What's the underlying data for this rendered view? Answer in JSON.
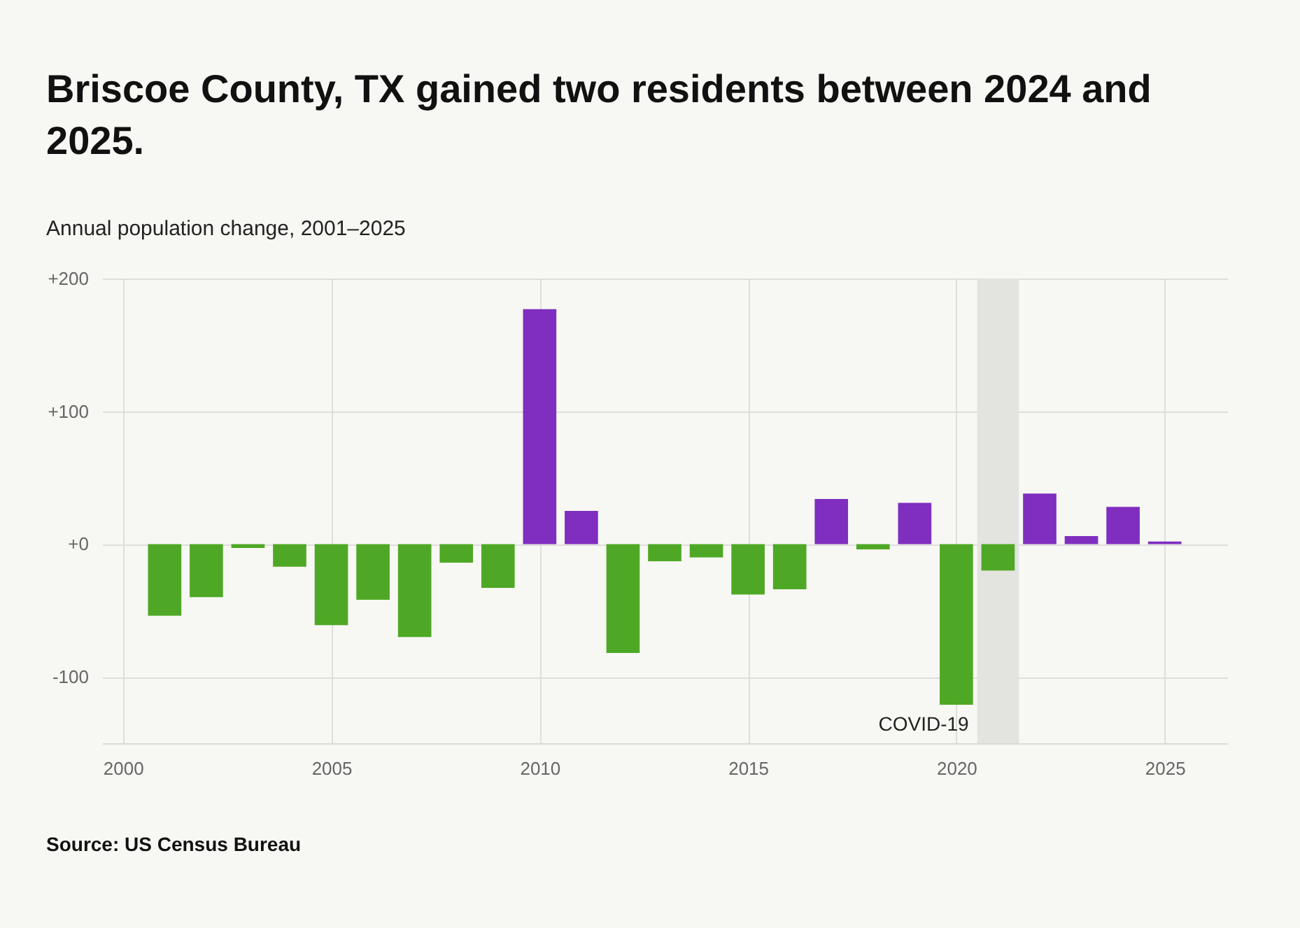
{
  "chart_data": {
    "type": "bar",
    "title": "Briscoe County, TX gained two residents between 2024 and 2025.",
    "subtitle": "Annual population change, 2001–2025",
    "x": [
      2001,
      2002,
      2003,
      2004,
      2005,
      2006,
      2007,
      2008,
      2009,
      2010,
      2011,
      2012,
      2013,
      2014,
      2015,
      2016,
      2017,
      2018,
      2019,
      2020,
      2021,
      2022,
      2023,
      2024,
      2025
    ],
    "values": [
      -54,
      -40,
      -3,
      -17,
      -61,
      -42,
      -70,
      -14,
      -33,
      177,
      25,
      -82,
      -13,
      -10,
      -38,
      -34,
      34,
      -4,
      31,
      -121,
      -20,
      38,
      6,
      28,
      2
    ],
    "colors": [
      "#4fa825",
      "#4fa825",
      "#4fa825",
      "#4fa825",
      "#4fa825",
      "#4fa825",
      "#4fa825",
      "#4fa825",
      "#4fa825",
      "#7f2ebf",
      "#7f2ebf",
      "#4fa825",
      "#4fa825",
      "#4fa825",
      "#4fa825",
      "#4fa825",
      "#7f2ebf",
      "#4fa825",
      "#7f2ebf",
      "#4fa825",
      "#4fa825",
      "#7f2ebf",
      "#7f2ebf",
      "#7f2ebf",
      "#7f2ebf"
    ],
    "xlim": [
      1999.5,
      2026.5
    ],
    "xticks": [
      2000,
      2005,
      2010,
      2015,
      2020,
      2025
    ],
    "ylim": [
      -150,
      200
    ],
    "yticks": [
      {
        "value": 200,
        "label": "+200"
      },
      {
        "value": 100,
        "label": "+100"
      },
      {
        "value": 0,
        "label": "+0"
      },
      -100
    ],
    "grid": true,
    "bands": [
      {
        "axis": "x",
        "from": 2020.5,
        "to": 2021.5,
        "label": "COVID-19",
        "color": "#e3e3df"
      }
    ],
    "annotations": [
      "Source: US Census Bureau"
    ]
  }
}
